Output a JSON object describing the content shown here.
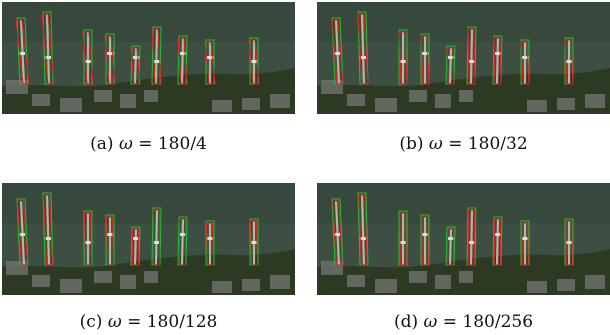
{
  "panels": [
    {
      "id": "a",
      "caption_prefix": "(a)",
      "omega_symbol": "ω",
      "caption_expr": "= 180/4"
    },
    {
      "id": "b",
      "caption_prefix": "(b)",
      "omega_symbol": "ω",
      "caption_expr": "= 180/32"
    },
    {
      "id": "c",
      "caption_prefix": "(c)",
      "omega_symbol": "ω",
      "caption_expr": "= 180/128"
    },
    {
      "id": "d",
      "caption_prefix": "(d)",
      "omega_symbol": "ω",
      "caption_expr": "= 180/256"
    }
  ],
  "colors": {
    "water": "#3d4f42",
    "water_dark": "#2f3f35",
    "shore": "#2c3a24",
    "houses": "#6b6e6a",
    "dock": "#b9b3a3",
    "box_red": "#e02020",
    "box_green": "#24c02a"
  }
}
